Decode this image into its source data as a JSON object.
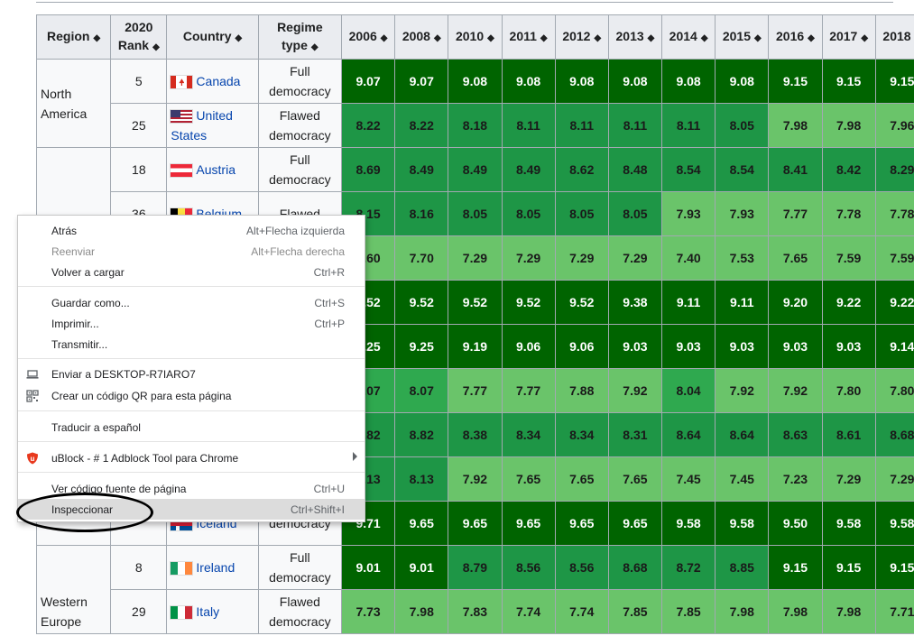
{
  "table": {
    "headers": {
      "region": "Region",
      "rank": "2020 Rank",
      "country": "Country",
      "regime": "Regime type",
      "years": [
        "2006",
        "2008",
        "2010",
        "2011",
        "2012",
        "2013",
        "2014",
        "2015",
        "2016",
        "2017",
        "2018"
      ]
    },
    "regions": {
      "north_america": "North America",
      "western_europe": "Western Europe"
    },
    "rows": [
      {
        "rank": "5",
        "country": "Canada",
        "regime": "Full democracy",
        "values": [
          "9.07",
          "9.07",
          "9.08",
          "9.08",
          "9.08",
          "9.08",
          "9.08",
          "9.08",
          "9.15",
          "9.15",
          "9.15"
        ]
      },
      {
        "rank": "25",
        "country": "United States",
        "regime": "Flawed democracy",
        "values": [
          "8.22",
          "8.22",
          "8.18",
          "8.11",
          "8.11",
          "8.11",
          "8.11",
          "8.05",
          "7.98",
          "7.98",
          "7.96"
        ]
      },
      {
        "rank": "18",
        "country": "Austria",
        "regime": "Full democracy",
        "values": [
          "8.69",
          "8.49",
          "8.49",
          "8.49",
          "8.62",
          "8.48",
          "8.54",
          "8.54",
          "8.41",
          "8.42",
          "8.29"
        ]
      },
      {
        "rank": "36",
        "country": "Belgium",
        "regime": "Flawed",
        "values": [
          "8.15",
          "8.16",
          "8.05",
          "8.05",
          "8.05",
          "8.05",
          "7.93",
          "7.93",
          "7.77",
          "7.78",
          "7.78"
        ]
      },
      {
        "values": [
          "7.60",
          "7.70",
          "7.29",
          "7.29",
          "7.29",
          "7.29",
          "7.40",
          "7.53",
          "7.65",
          "7.59",
          "7.59"
        ]
      },
      {
        "values": [
          "9.52",
          "9.52",
          "9.52",
          "9.52",
          "9.52",
          "9.38",
          "9.11",
          "9.11",
          "9.20",
          "9.22",
          "9.22"
        ]
      },
      {
        "values": [
          "9.25",
          "9.25",
          "9.19",
          "9.06",
          "9.06",
          "9.03",
          "9.03",
          "9.03",
          "9.03",
          "9.03",
          "9.14"
        ]
      },
      {
        "values": [
          "8.07",
          "8.07",
          "7.77",
          "7.77",
          "7.88",
          "7.92",
          "8.04",
          "7.92",
          "7.92",
          "7.80",
          "7.80"
        ]
      },
      {
        "values": [
          "8.82",
          "8.82",
          "8.38",
          "8.34",
          "8.34",
          "8.31",
          "8.64",
          "8.64",
          "8.63",
          "8.61",
          "8.68"
        ]
      },
      {
        "values": [
          "8.13",
          "8.13",
          "7.92",
          "7.65",
          "7.65",
          "7.65",
          "7.45",
          "7.45",
          "7.23",
          "7.29",
          "7.29"
        ]
      },
      {
        "country": "Iceland",
        "regime": "democracy",
        "values": [
          "9.71",
          "9.65",
          "9.65",
          "9.65",
          "9.65",
          "9.65",
          "9.58",
          "9.58",
          "9.50",
          "9.58",
          "9.58"
        ]
      },
      {
        "rank": "8",
        "country": "Ireland",
        "regime": "Full democracy",
        "values": [
          "9.01",
          "9.01",
          "8.79",
          "8.56",
          "8.56",
          "8.68",
          "8.72",
          "8.85",
          "9.15",
          "9.15",
          "9.15"
        ]
      },
      {
        "rank": "29",
        "country": "Italy",
        "regime": "Flawed democracy",
        "values": [
          "7.73",
          "7.98",
          "7.83",
          "7.74",
          "7.74",
          "7.85",
          "7.85",
          "7.98",
          "7.98",
          "7.98",
          "7.71"
        ]
      }
    ]
  },
  "context_menu": {
    "items": [
      {
        "label": "Atrás",
        "shortcut": "Alt+Flecha izquierda"
      },
      {
        "label": "Reenviar",
        "shortcut": "Alt+Flecha derecha"
      },
      {
        "label": "Volver a cargar",
        "shortcut": "Ctrl+R"
      },
      {
        "label": "Guardar como...",
        "shortcut": "Ctrl+S"
      },
      {
        "label": "Imprimir...",
        "shortcut": "Ctrl+P"
      },
      {
        "label": "Transmitir...",
        "shortcut": ""
      },
      {
        "label": "Enviar a DESKTOP-R7IARO7",
        "shortcut": ""
      },
      {
        "label": "Crear un código QR para esta página",
        "shortcut": ""
      },
      {
        "label": "Traducir a español",
        "shortcut": ""
      },
      {
        "label": "uBlock - # 1 Adblock Tool para Chrome",
        "shortcut": ""
      },
      {
        "label": "Ver código fuente de página",
        "shortcut": "Ctrl+U"
      },
      {
        "label": "Inspeccionar",
        "shortcut": "Ctrl+Shift+I"
      }
    ]
  }
}
